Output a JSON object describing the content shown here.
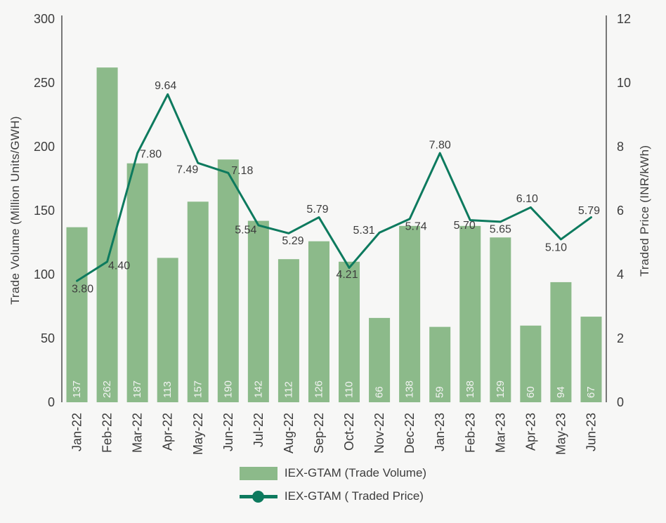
{
  "colors": {
    "bar": "#8cba8a",
    "line": "#0d7a5e",
    "text": "#3d3d3d",
    "bar_label": "#f2f3f2",
    "axis_line": "#4d4d4d",
    "background": "#f7f7f6"
  },
  "chart_data": {
    "type": "bar+line",
    "categories": [
      "Jan-22",
      "Feb-22",
      "Mar-22",
      "Apr-22",
      "May-22",
      "Jun-22",
      "Jul-22",
      "Aug-22",
      "Sep-22",
      "Oct-22",
      "Nov-22",
      "Dec-22",
      "Jan-23",
      "Feb-23",
      "Mar-23",
      "Apr-23",
      "May-23",
      "Jun-23"
    ],
    "series": [
      {
        "name": "IEX-GTAM (Trade Volume)",
        "type": "bar",
        "axis": "left",
        "values": [
          137,
          262,
          187,
          113,
          157,
          190,
          142,
          112,
          126,
          110,
          66,
          138,
          59,
          138,
          129,
          60,
          94,
          67
        ]
      },
      {
        "name": "IEX-GTAM ( Traded Price)",
        "type": "line",
        "axis": "right",
        "values": [
          3.8,
          4.4,
          7.8,
          9.64,
          7.49,
          7.18,
          5.54,
          5.29,
          5.79,
          4.21,
          5.31,
          5.74,
          7.8,
          5.7,
          5.65,
          6.1,
          5.1,
          5.79
        ],
        "point_labels": [
          "3.80",
          "4.40",
          "7.80",
          "9.64",
          "7.49",
          "7.18",
          "5.54",
          "5.29",
          "5.79",
          "4.21",
          "5.31",
          "5.74",
          "7.80",
          "5.70",
          "5.65",
          "6.10",
          "5.10",
          "5.79"
        ],
        "label_offsets": [
          [
            8,
            12
          ],
          [
            17,
            6
          ],
          [
            19,
            2
          ],
          [
            -3,
            -12
          ],
          [
            -15,
            10
          ],
          [
            20,
            -3
          ],
          [
            -18,
            7
          ],
          [
            6,
            11
          ],
          [
            -2,
            -11
          ],
          [
            -3,
            10
          ],
          [
            -22,
            -3
          ],
          [
            9,
            11
          ],
          [
            0,
            -11
          ],
          [
            -8,
            8
          ],
          [
            0,
            11
          ],
          [
            -5,
            -12
          ],
          [
            -7,
            12
          ],
          [
            -3,
            -9
          ]
        ]
      }
    ],
    "left_axis": {
      "title": "Trade Volume (Million Units/GWH)",
      "ticks": [
        0,
        50,
        100,
        150,
        200,
        250,
        300
      ],
      "min": 0,
      "max": 300
    },
    "right_axis": {
      "title": "Traded Price (INR/kWh)",
      "ticks": [
        0,
        2,
        4,
        6,
        8,
        10,
        12
      ],
      "min": 0,
      "max": 12
    },
    "grid": false,
    "legend": {
      "position": "bottom-center",
      "items": [
        {
          "label": "IEX-GTAM (Trade Volume)",
          "marker": "bar-swatch"
        },
        {
          "label": "IEX-GTAM ( Traded Price)",
          "marker": "line-dot"
        }
      ]
    }
  }
}
